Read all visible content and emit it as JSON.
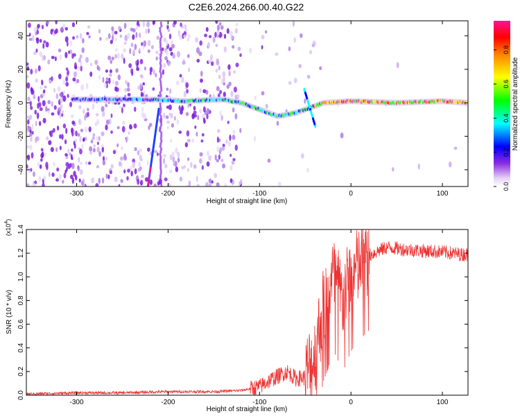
{
  "title": "C2E6.2024.266.00.40.G22",
  "chart_data": [
    {
      "type": "heatmap",
      "xlabel": "Height of straight line (km)",
      "ylabel": "Frequency (Hz)",
      "xlim": [
        -355,
        128
      ],
      "ylim": [
        -50,
        49
      ],
      "xticks": [
        -300,
        -200,
        -100,
        0,
        100
      ],
      "yticks": [
        -40,
        -20,
        0,
        20,
        40
      ],
      "colorbar": {
        "label": "Normalized spectral amplitude",
        "range": [
          0,
          0.97
        ],
        "ticks": [
          "0.0",
          "0.2",
          "0.4",
          "0.6",
          "0.8"
        ],
        "colormap": [
          "#ffffff",
          "#e6d2f5",
          "#8a2be2",
          "#0000ff",
          "#00ffff",
          "#00ff00",
          "#ffff00",
          "#ff8000",
          "#ff0000",
          "#ff1493"
        ]
      },
      "ridge": [
        {
          "x": -300,
          "freq": 2
        },
        {
          "x": -250,
          "freq": 2
        },
        {
          "x": -215,
          "freq": 2
        },
        {
          "x": -180,
          "freq": 1
        },
        {
          "x": -140,
          "freq": 2
        },
        {
          "x": -120,
          "freq": 0
        },
        {
          "x": -100,
          "freq": -4
        },
        {
          "x": -80,
          "freq": -8
        },
        {
          "x": -60,
          "freq": -6
        },
        {
          "x": -45,
          "freq": -3
        },
        {
          "x": -30,
          "freq": 0
        },
        {
          "x": 0,
          "freq": 1
        },
        {
          "x": 50,
          "freq": 0
        },
        {
          "x": 100,
          "freq": 1
        },
        {
          "x": 128,
          "freq": 0
        }
      ],
      "streak": [
        {
          "x": -222,
          "freq": -50
        },
        {
          "x": -210,
          "freq": -3
        }
      ]
    },
    {
      "type": "line",
      "xlabel": "Height of straight line (km)",
      "ylabel": "SNR (10 * v/v)",
      "yscale_label": "(x10^4)",
      "xlim": [
        -355,
        128
      ],
      "ylim": [
        0,
        1.4
      ],
      "xticks": [
        -300,
        -200,
        -100,
        0,
        100
      ],
      "yticks": [
        "0.0",
        "0.2",
        "0.4",
        "0.6",
        "0.8",
        "1.0",
        "1.2",
        "1.4"
      ],
      "series": [
        {
          "color": "#ee3333",
          "x": [
            -355,
            -300,
            -250,
            -200,
            -150,
            -120,
            -100,
            -90,
            -80,
            -70,
            -60,
            -50,
            -45,
            -40,
            -35,
            -30,
            -25,
            -20,
            -15,
            -10,
            -5,
            0,
            10,
            20,
            30,
            40,
            50,
            60,
            80,
            100,
            120,
            128
          ],
          "y": [
            0.01,
            0.02,
            0.02,
            0.03,
            0.03,
            0.04,
            0.07,
            0.12,
            0.16,
            0.2,
            0.14,
            0.15,
            0.25,
            0.32,
            0.55,
            0.75,
            0.85,
            1.0,
            0.95,
            0.8,
            0.9,
            1.0,
            1.1,
            1.18,
            1.22,
            1.25,
            1.24,
            1.23,
            1.22,
            1.21,
            1.19,
            1.19
          ]
        }
      ]
    }
  ]
}
